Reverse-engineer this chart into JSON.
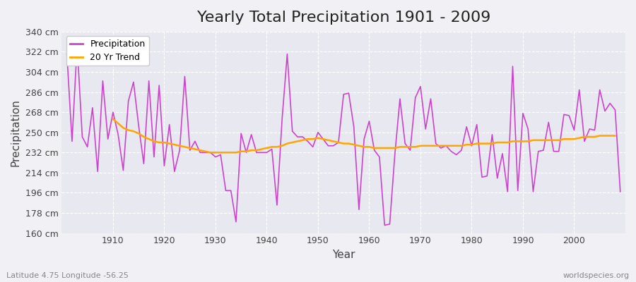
{
  "title": "Yearly Total Precipitation 1901 - 2009",
  "xlabel": "Year",
  "ylabel": "Precipitation",
  "lat_lon_label": "Latitude 4.75 Longitude -56.25",
  "source_label": "worldspecies.org",
  "ylim": [
    160,
    340
  ],
  "yticks": [
    160,
    178,
    196,
    214,
    232,
    250,
    268,
    286,
    304,
    322,
    340
  ],
  "ytick_labels": [
    "160 cm",
    "178 cm",
    "196 cm",
    "214 cm",
    "232 cm",
    "250 cm",
    "268 cm",
    "286 cm",
    "304 cm",
    "322 cm",
    "340 cm"
  ],
  "years": [
    1901,
    1902,
    1903,
    1904,
    1905,
    1906,
    1907,
    1908,
    1909,
    1910,
    1911,
    1912,
    1913,
    1914,
    1915,
    1916,
    1917,
    1918,
    1919,
    1920,
    1921,
    1922,
    1923,
    1924,
    1925,
    1926,
    1927,
    1928,
    1929,
    1930,
    1931,
    1932,
    1933,
    1934,
    1935,
    1936,
    1937,
    1938,
    1939,
    1940,
    1941,
    1942,
    1943,
    1944,
    1945,
    1946,
    1947,
    1948,
    1949,
    1950,
    1951,
    1952,
    1953,
    1954,
    1955,
    1956,
    1957,
    1958,
    1959,
    1960,
    1961,
    1962,
    1963,
    1964,
    1965,
    1966,
    1967,
    1968,
    1969,
    1970,
    1971,
    1972,
    1973,
    1974,
    1975,
    1976,
    1977,
    1978,
    1979,
    1980,
    1981,
    1982,
    1983,
    1984,
    1985,
    1986,
    1987,
    1988,
    1989,
    1990,
    1991,
    1992,
    1993,
    1994,
    1995,
    1996,
    1997,
    1998,
    1999,
    2000,
    2001,
    2002,
    2003,
    2004,
    2005,
    2006,
    2007,
    2008,
    2009
  ],
  "precipitation": [
    320,
    242,
    328,
    246,
    237,
    272,
    215,
    296,
    244,
    268,
    248,
    216,
    278,
    295,
    256,
    222,
    296,
    228,
    292,
    220,
    257,
    215,
    234,
    300,
    234,
    242,
    232,
    232,
    232,
    228,
    230,
    198,
    198,
    170,
    249,
    232,
    248,
    232,
    232,
    232,
    235,
    185,
    262,
    320,
    251,
    246,
    246,
    242,
    237,
    250,
    244,
    238,
    238,
    241,
    284,
    285,
    255,
    181,
    244,
    260,
    234,
    228,
    167,
    168,
    230,
    280,
    240,
    234,
    281,
    291,
    253,
    280,
    240,
    236,
    238,
    233,
    230,
    234,
    255,
    238,
    257,
    210,
    211,
    248,
    209,
    231,
    197,
    309,
    198,
    267,
    253,
    197,
    233,
    234,
    259,
    233,
    233,
    266,
    265,
    252,
    288,
    242,
    253,
    252,
    288,
    269,
    276,
    270,
    197
  ],
  "trend": [
    null,
    null,
    null,
    null,
    null,
    null,
    null,
    null,
    null,
    262,
    258,
    254,
    252,
    251,
    249,
    246,
    244,
    242,
    241,
    241,
    240,
    239,
    238,
    237,
    236,
    235,
    234,
    233,
    232,
    232,
    232,
    232,
    232,
    232,
    233,
    233,
    234,
    234,
    235,
    236,
    237,
    237,
    238,
    240,
    241,
    242,
    243,
    244,
    244,
    245,
    244,
    243,
    242,
    241,
    240,
    240,
    239,
    238,
    237,
    237,
    236,
    236,
    236,
    236,
    236,
    237,
    237,
    237,
    237,
    238,
    238,
    238,
    238,
    238,
    238,
    238,
    238,
    238,
    239,
    239,
    240,
    240,
    240,
    240,
    241,
    241,
    241,
    242,
    242,
    242,
    242,
    243,
    243,
    243,
    243,
    243,
    243,
    244,
    244,
    244,
    245,
    246,
    246,
    246,
    247,
    247,
    247,
    247,
    null
  ],
  "precip_color": "#CC44CC",
  "trend_color": "#FFA500",
  "bg_color": "#f0f0f5",
  "plot_bg_color": "#e8e8f0",
  "grid_color": "#ffffff",
  "title_fontsize": 16,
  "axis_label_fontsize": 11,
  "tick_fontsize": 9
}
